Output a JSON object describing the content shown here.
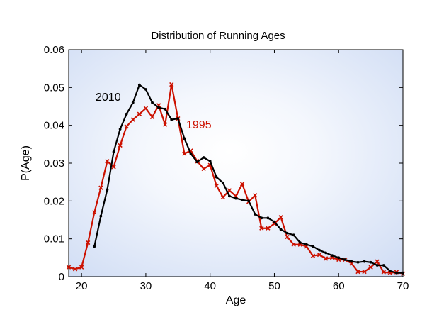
{
  "chart_data": {
    "type": "line",
    "title": "Distribution of Running Ages",
    "xlabel": "Age",
    "ylabel": "P(Age)",
    "xlim": [
      18,
      70
    ],
    "ylim": [
      0,
      0.06
    ],
    "x_ticks": [
      "20",
      "30",
      "40",
      "50",
      "60",
      "70"
    ],
    "y_ticks": [
      "0",
      "0.01",
      "0.02",
      "0.03",
      "0.04",
      "0.05",
      "0.06"
    ],
    "grid": false,
    "legend": "none",
    "background": "radial gradient, white center to light blue (#d5e1f5) edges",
    "annotations": [
      {
        "text": "2010",
        "color": "#000000",
        "series": "2010"
      },
      {
        "text": "1995",
        "color": "#cc1100",
        "series": "1995"
      }
    ],
    "series": [
      {
        "name": "2010",
        "color": "#000000",
        "marker": "dot",
        "x": [
          22,
          23,
          24,
          25,
          26,
          27,
          28,
          29,
          30,
          31,
          32,
          33,
          34,
          35,
          36,
          37,
          38,
          39,
          40,
          41,
          42,
          43,
          44,
          45,
          46,
          47,
          48,
          49,
          50,
          51,
          52,
          53,
          54,
          55,
          56,
          57,
          58,
          59,
          60,
          61,
          62,
          63,
          64,
          65,
          66,
          67,
          68,
          69,
          70
        ],
        "values": [
          0.008,
          0.016,
          0.023,
          0.033,
          0.039,
          0.043,
          0.046,
          0.0507,
          0.0495,
          0.046,
          0.0447,
          0.0443,
          0.0415,
          0.0418,
          0.0365,
          0.0325,
          0.0303,
          0.0315,
          0.0305,
          0.0263,
          0.0248,
          0.0213,
          0.0207,
          0.0203,
          0.02,
          0.0165,
          0.0155,
          0.0155,
          0.0145,
          0.0125,
          0.0115,
          0.011,
          0.009,
          0.0085,
          0.008,
          0.007,
          0.0063,
          0.0056,
          0.005,
          0.0045,
          0.004,
          0.0038,
          0.004,
          0.0038,
          0.003,
          0.003,
          0.0015,
          0.001,
          0.001
        ]
      },
      {
        "name": "1995",
        "color": "#cc1100",
        "marker": "x",
        "x": [
          18,
          19,
          20,
          21,
          22,
          23,
          24,
          25,
          26,
          27,
          28,
          29,
          30,
          31,
          32,
          33,
          34,
          35,
          36,
          37,
          38,
          39,
          40,
          41,
          42,
          43,
          44,
          45,
          46,
          47,
          48,
          49,
          50,
          51,
          52,
          53,
          54,
          55,
          56,
          57,
          58,
          59,
          60,
          61,
          62,
          63,
          64,
          65,
          66,
          67,
          68,
          69,
          70
        ],
        "values": [
          0.0025,
          0.002,
          0.0025,
          0.009,
          0.017,
          0.0235,
          0.0305,
          0.029,
          0.0347,
          0.0397,
          0.0415,
          0.043,
          0.0445,
          0.0422,
          0.0453,
          0.0402,
          0.0508,
          0.0418,
          0.0325,
          0.0333,
          0.0305,
          0.0285,
          0.0295,
          0.024,
          0.021,
          0.0228,
          0.0213,
          0.0245,
          0.0198,
          0.0215,
          0.0128,
          0.0128,
          0.014,
          0.0157,
          0.0105,
          0.0085,
          0.0085,
          0.008,
          0.0055,
          0.0058,
          0.0048,
          0.005,
          0.0045,
          0.0045,
          0.0035,
          0.0013,
          0.0013,
          0.0025,
          0.004,
          0.0012,
          0.001,
          0.0012,
          0.0008
        ]
      }
    ]
  }
}
